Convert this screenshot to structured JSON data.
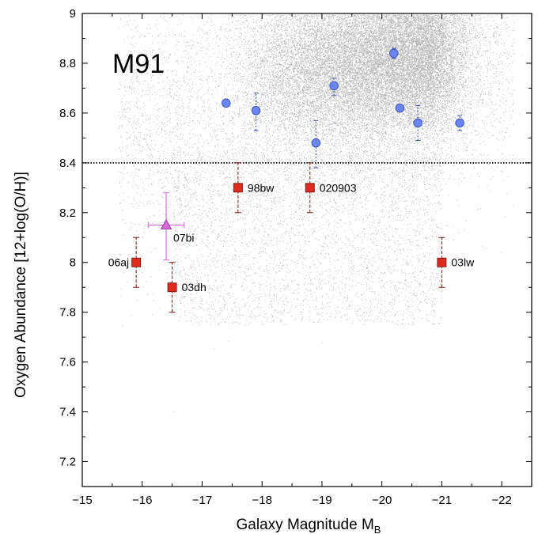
{
  "chart_data": {
    "type": "scatter",
    "title": "",
    "panel_label": "M91",
    "xlabel": "Galaxy Magnitude M",
    "xlabel_sub": "B",
    "ylabel": "Oxygen Abundance [12+log(O/H)]",
    "xlim": [
      -15,
      -22.5
    ],
    "ylim": [
      7.1,
      9.0
    ],
    "x_reversed": true,
    "x_ticks": [
      -15,
      -16,
      -17,
      -18,
      -19,
      -20,
      -21,
      -22
    ],
    "x_tick_labels": [
      "−15",
      "−16",
      "−17",
      "−18",
      "−19",
      "−20",
      "−21",
      "−22"
    ],
    "y_ticks": [
      7.2,
      7.4,
      7.6,
      7.8,
      8.0,
      8.2,
      8.4,
      8.6,
      8.8,
      9.0
    ],
    "y_tick_labels": [
      "7.2",
      "7.4",
      "7.6",
      "7.8",
      "8",
      "8.2",
      "8.4",
      "8.6",
      "8.8",
      "9"
    ],
    "grid": false,
    "reference_line": {
      "y": 8.4,
      "style": "dotted"
    },
    "colors": {
      "background_points": "#9a9a9a",
      "blue": "#6b86f0",
      "blue_edge": "#3b4fb0",
      "red": "#dd2b1f",
      "red_edge": "#7a1a12",
      "magenta": "#d56cd9"
    },
    "series": [
      {
        "marker": "circle",
        "points": [
          {
            "x": -17.4,
            "y": 8.64,
            "err_lo": 0.01,
            "err_hi": 0.01
          },
          {
            "x": -17.9,
            "y": 8.61,
            "err_lo": 0.08,
            "err_hi": 0.07
          },
          {
            "x": -18.9,
            "y": 8.48,
            "err_lo": 0.1,
            "err_hi": 0.09
          },
          {
            "x": -19.2,
            "y": 8.71,
            "err_lo": 0.04,
            "err_hi": 0.03
          },
          {
            "x": -20.2,
            "y": 8.84,
            "err_lo": 0.02,
            "err_hi": 0.02
          },
          {
            "x": -20.3,
            "y": 8.62,
            "err_lo": 0.01,
            "err_hi": 0.01
          },
          {
            "x": -20.6,
            "y": 8.56,
            "err_lo": 0.07,
            "err_hi": 0.07
          },
          {
            "x": -21.3,
            "y": 8.56,
            "err_lo": 0.03,
            "err_hi": 0.03
          }
        ]
      },
      {
        "marker": "square",
        "points": [
          {
            "label": "06aj",
            "x": -15.9,
            "y": 8.0,
            "err_lo": 0.1,
            "err_hi": 0.1
          },
          {
            "label": "03dh",
            "x": -16.5,
            "y": 7.9,
            "err_lo": 0.1,
            "err_hi": 0.1
          },
          {
            "label": "98bw",
            "x": -17.6,
            "y": 8.3,
            "err_lo": 0.1,
            "err_hi": 0.1
          },
          {
            "label": "020903",
            "x": -18.8,
            "y": 8.3,
            "err_lo": 0.1,
            "err_hi": 0.1
          },
          {
            "label": "03lw",
            "x": -21.0,
            "y": 8.0,
            "err_lo": 0.1,
            "err_hi": 0.1
          }
        ]
      },
      {
        "marker": "triangle",
        "points": [
          {
            "label": "07bi",
            "x": -16.4,
            "y": 8.15,
            "err_lo": 0.14,
            "err_hi": 0.13,
            "xerr": 0.3
          }
        ]
      }
    ]
  }
}
